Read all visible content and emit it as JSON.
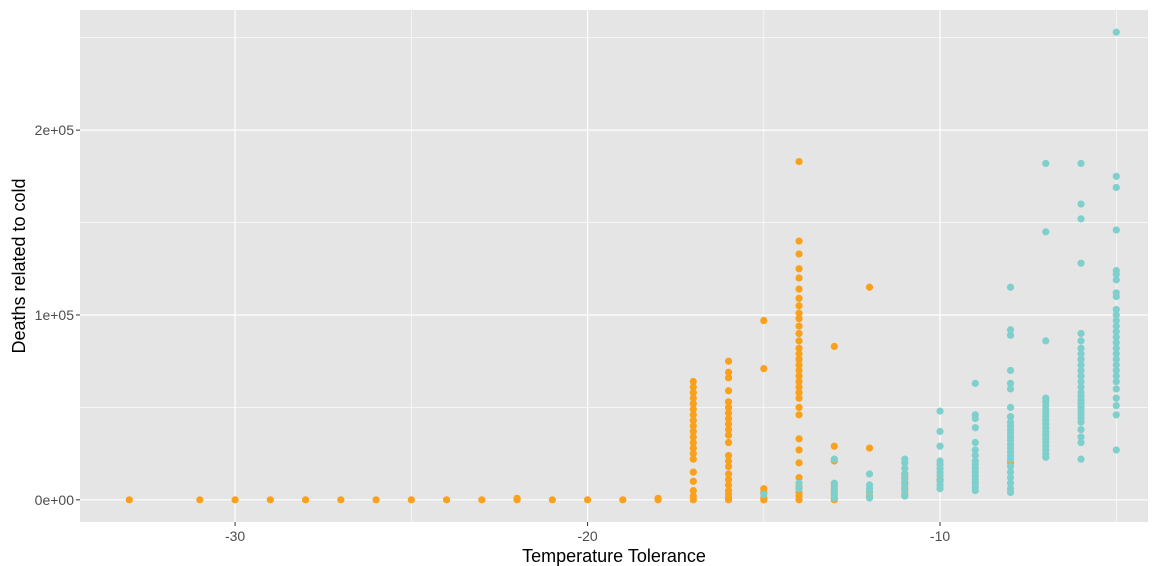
{
  "chart_data": {
    "type": "scatter",
    "title": "",
    "xlabel": "Temperature  Tolerance",
    "ylabel": "Deaths related to cold",
    "xlim": [
      -34.4,
      -4.1
    ],
    "ylim": [
      -12000,
      265000
    ],
    "x_ticks": [
      -30,
      -20,
      -10
    ],
    "x_tick_labels": [
      "-30",
      "-20",
      "-10"
    ],
    "y_ticks": [
      0,
      100000,
      200000
    ],
    "y_tick_labels": [
      "0e+00",
      "1e+05",
      "2e+05"
    ],
    "grid": true,
    "legend": "none",
    "colors": {
      "panel_bg": "#e5e5e5",
      "grid": "#ffffff",
      "series_orange": "#f9a11b",
      "series_teal": "#7fcfcc"
    },
    "series": [
      {
        "color": "#f9a11b",
        "points": [
          [
            -33,
            0
          ],
          [
            -31,
            0
          ],
          [
            -30,
            0
          ],
          [
            -29,
            0
          ],
          [
            -28,
            0
          ],
          [
            -27,
            0
          ],
          [
            -26,
            0
          ],
          [
            -25,
            0
          ],
          [
            -24,
            0
          ],
          [
            -23,
            0
          ],
          [
            -22,
            0
          ],
          [
            -22,
            800
          ],
          [
            -21,
            0
          ],
          [
            -20,
            0
          ],
          [
            -19,
            0
          ],
          [
            -18,
            0
          ],
          [
            -18,
            800
          ],
          [
            -17,
            64000
          ],
          [
            -17,
            61000
          ],
          [
            -17,
            58000
          ],
          [
            -17,
            55000
          ],
          [
            -17,
            52000
          ],
          [
            -17,
            49000
          ],
          [
            -17,
            46000
          ],
          [
            -17,
            43000
          ],
          [
            -17,
            40000
          ],
          [
            -17,
            37000
          ],
          [
            -17,
            34000
          ],
          [
            -17,
            31000
          ],
          [
            -17,
            28000
          ],
          [
            -17,
            25000
          ],
          [
            -17,
            22000
          ],
          [
            -17,
            15000
          ],
          [
            -17,
            10000
          ],
          [
            -17,
            5000
          ],
          [
            -17,
            2000
          ],
          [
            -17,
            0
          ],
          [
            -16,
            75000
          ],
          [
            -16,
            69000
          ],
          [
            -16,
            66000
          ],
          [
            -16,
            59000
          ],
          [
            -16,
            53000
          ],
          [
            -16,
            50000
          ],
          [
            -16,
            47000
          ],
          [
            -16,
            44000
          ],
          [
            -16,
            41000
          ],
          [
            -16,
            38000
          ],
          [
            -16,
            35000
          ],
          [
            -16,
            31000
          ],
          [
            -16,
            24000
          ],
          [
            -16,
            21000
          ],
          [
            -16,
            18000
          ],
          [
            -16,
            14000
          ],
          [
            -16,
            11000
          ],
          [
            -16,
            8000
          ],
          [
            -16,
            5000
          ],
          [
            -16,
            3000
          ],
          [
            -16,
            1000
          ],
          [
            -16,
            0
          ],
          [
            -15,
            97000
          ],
          [
            -15,
            71000
          ],
          [
            -15,
            6000
          ],
          [
            -15,
            4000
          ],
          [
            -15,
            1000
          ],
          [
            -15,
            0
          ],
          [
            -14,
            183000
          ],
          [
            -14,
            140000
          ],
          [
            -14,
            133000
          ],
          [
            -14,
            125000
          ],
          [
            -14,
            120000
          ],
          [
            -14,
            114000
          ],
          [
            -14,
            109000
          ],
          [
            -14,
            105000
          ],
          [
            -14,
            101000
          ],
          [
            -14,
            98000
          ],
          [
            -14,
            94000
          ],
          [
            -14,
            90000
          ],
          [
            -14,
            86000
          ],
          [
            -14,
            82000
          ],
          [
            -14,
            79000
          ],
          [
            -14,
            76000
          ],
          [
            -14,
            73000
          ],
          [
            -14,
            70000
          ],
          [
            -14,
            67000
          ],
          [
            -14,
            64000
          ],
          [
            -14,
            61000
          ],
          [
            -14,
            58000
          ],
          [
            -14,
            55000
          ],
          [
            -14,
            50000
          ],
          [
            -14,
            46000
          ],
          [
            -14,
            33000
          ],
          [
            -14,
            27000
          ],
          [
            -14,
            20000
          ],
          [
            -14,
            12000
          ],
          [
            -14,
            7000
          ],
          [
            -14,
            4000
          ],
          [
            -14,
            2000
          ],
          [
            -14,
            0
          ],
          [
            -13,
            83000
          ],
          [
            -13,
            29000
          ],
          [
            -13,
            21000
          ],
          [
            -13,
            8000
          ],
          [
            -13,
            5000
          ],
          [
            -13,
            3000
          ],
          [
            -13,
            1000
          ],
          [
            -13,
            0
          ],
          [
            -12,
            115000
          ],
          [
            -12,
            28000
          ],
          [
            -12,
            4000
          ],
          [
            -12,
            2000
          ],
          [
            -11,
            14000
          ],
          [
            -11,
            12000
          ],
          [
            -11,
            9000
          ],
          [
            -11,
            6000
          ],
          [
            -11,
            3000
          ],
          [
            -10,
            11000
          ],
          [
            -8,
            20000
          ]
        ]
      },
      {
        "color": "#7fcfcc",
        "points": [
          [
            -15,
            3000
          ],
          [
            -14,
            9000
          ],
          [
            -14,
            6000
          ],
          [
            -13,
            9000
          ],
          [
            -13,
            22000
          ],
          [
            -13,
            6000
          ],
          [
            -13,
            3000
          ],
          [
            -13,
            1000
          ],
          [
            -12,
            14000
          ],
          [
            -12,
            8000
          ],
          [
            -12,
            6000
          ],
          [
            -12,
            4000
          ],
          [
            -12,
            1000
          ],
          [
            -11,
            22000
          ],
          [
            -11,
            20000
          ],
          [
            -11,
            17000
          ],
          [
            -11,
            14000
          ],
          [
            -11,
            11000
          ],
          [
            -11,
            8000
          ],
          [
            -11,
            5000
          ],
          [
            -11,
            2000
          ],
          [
            -10,
            48000
          ],
          [
            -10,
            37000
          ],
          [
            -10,
            29000
          ],
          [
            -10,
            21000
          ],
          [
            -10,
            19000
          ],
          [
            -10,
            17000
          ],
          [
            -10,
            15000
          ],
          [
            -10,
            13000
          ],
          [
            -10,
            10000
          ],
          [
            -10,
            8000
          ],
          [
            -10,
            6000
          ],
          [
            -9,
            63000
          ],
          [
            -9,
            46000
          ],
          [
            -9,
            44000
          ],
          [
            -9,
            39000
          ],
          [
            -9,
            31000
          ],
          [
            -9,
            27000
          ],
          [
            -9,
            24000
          ],
          [
            -9,
            21000
          ],
          [
            -9,
            19000
          ],
          [
            -9,
            17000
          ],
          [
            -9,
            15000
          ],
          [
            -9,
            13000
          ],
          [
            -9,
            11000
          ],
          [
            -9,
            9000
          ],
          [
            -9,
            7000
          ],
          [
            -9,
            5000
          ],
          [
            -8,
            115000
          ],
          [
            -8,
            92000
          ],
          [
            -8,
            89000
          ],
          [
            -8,
            70000
          ],
          [
            -8,
            63000
          ],
          [
            -8,
            60000
          ],
          [
            -8,
            50000
          ],
          [
            -8,
            45000
          ],
          [
            -8,
            42000
          ],
          [
            -8,
            40000
          ],
          [
            -8,
            38000
          ],
          [
            -8,
            36000
          ],
          [
            -8,
            34000
          ],
          [
            -8,
            32000
          ],
          [
            -8,
            30000
          ],
          [
            -8,
            28000
          ],
          [
            -8,
            26000
          ],
          [
            -8,
            24000
          ],
          [
            -8,
            22000
          ],
          [
            -8,
            18000
          ],
          [
            -8,
            15000
          ],
          [
            -8,
            12000
          ],
          [
            -8,
            9000
          ],
          [
            -8,
            6000
          ],
          [
            -8,
            4000
          ],
          [
            -7,
            182000
          ],
          [
            -7,
            145000
          ],
          [
            -7,
            86000
          ],
          [
            -7,
            55000
          ],
          [
            -7,
            53000
          ],
          [
            -7,
            51000
          ],
          [
            -7,
            49000
          ],
          [
            -7,
            47000
          ],
          [
            -7,
            45000
          ],
          [
            -7,
            43000
          ],
          [
            -7,
            41000
          ],
          [
            -7,
            39000
          ],
          [
            -7,
            37000
          ],
          [
            -7,
            35000
          ],
          [
            -7,
            33000
          ],
          [
            -7,
            31000
          ],
          [
            -7,
            29000
          ],
          [
            -7,
            27000
          ],
          [
            -7,
            25000
          ],
          [
            -7,
            23000
          ],
          [
            -6,
            182000
          ],
          [
            -6,
            160000
          ],
          [
            -6,
            152000
          ],
          [
            -6,
            128000
          ],
          [
            -6,
            90000
          ],
          [
            -6,
            86000
          ],
          [
            -6,
            82000
          ],
          [
            -6,
            79000
          ],
          [
            -6,
            76000
          ],
          [
            -6,
            73000
          ],
          [
            -6,
            70000
          ],
          [
            -6,
            67000
          ],
          [
            -6,
            64000
          ],
          [
            -6,
            61000
          ],
          [
            -6,
            58000
          ],
          [
            -6,
            56000
          ],
          [
            -6,
            54000
          ],
          [
            -6,
            52000
          ],
          [
            -6,
            50000
          ],
          [
            -6,
            48000
          ],
          [
            -6,
            46000
          ],
          [
            -6,
            44000
          ],
          [
            -6,
            42000
          ],
          [
            -6,
            38000
          ],
          [
            -6,
            34000
          ],
          [
            -6,
            31000
          ],
          [
            -6,
            22000
          ],
          [
            -5,
            253000
          ],
          [
            -5,
            175000
          ],
          [
            -5,
            169000
          ],
          [
            -5,
            146000
          ],
          [
            -5,
            124000
          ],
          [
            -5,
            122000
          ],
          [
            -5,
            119000
          ],
          [
            -5,
            112000
          ],
          [
            -5,
            110000
          ],
          [
            -5,
            103000
          ],
          [
            -5,
            100000
          ],
          [
            -5,
            97000
          ],
          [
            -5,
            94000
          ],
          [
            -5,
            91000
          ],
          [
            -5,
            88000
          ],
          [
            -5,
            85000
          ],
          [
            -5,
            82000
          ],
          [
            -5,
            79000
          ],
          [
            -5,
            76000
          ],
          [
            -5,
            73000
          ],
          [
            -5,
            70000
          ],
          [
            -5,
            67000
          ],
          [
            -5,
            64000
          ],
          [
            -5,
            60000
          ],
          [
            -5,
            55000
          ],
          [
            -5,
            51000
          ],
          [
            -5,
            46000
          ],
          [
            -5,
            27000
          ]
        ]
      }
    ]
  }
}
